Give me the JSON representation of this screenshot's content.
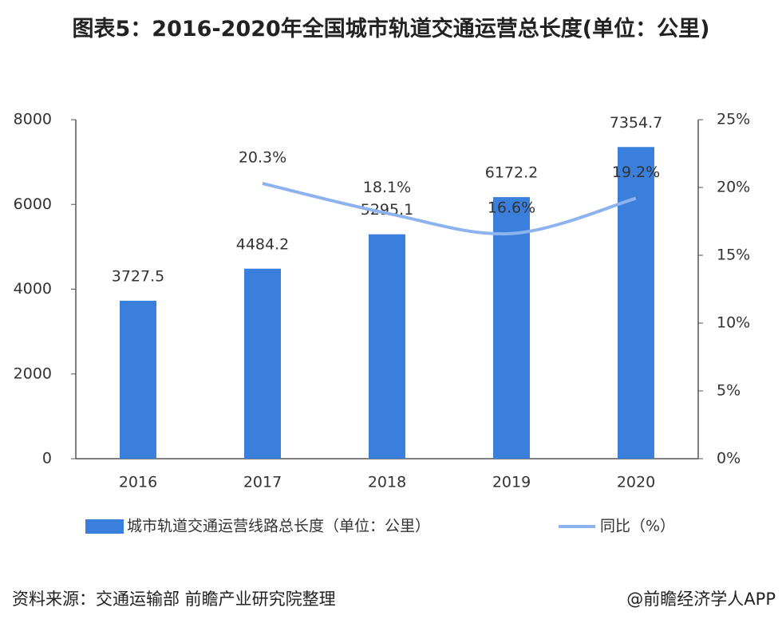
{
  "chart_data": {
    "type": "bar-line",
    "title": "图表5：2016-2020年全国城市轨道交通运营总长度(单位：公里)",
    "categories": [
      "2016",
      "2017",
      "2018",
      "2019",
      "2020"
    ],
    "series": [
      {
        "name": "城市轨道交通运营线路总长度（单位：公里）",
        "type": "bar",
        "color": "#3a7fdb",
        "values": [
          3727.5,
          4484.2,
          5295.1,
          6172.2,
          7354.7
        ]
      },
      {
        "name": "同比（%）",
        "type": "line",
        "axis": "y2",
        "color": "#8db3ee",
        "values": [
          null,
          20.3,
          18.1,
          16.6,
          19.2
        ],
        "value_labels": [
          null,
          "20.3%",
          "18.1%",
          "16.6%",
          "19.2%"
        ]
      }
    ],
    "ylim": [
      0,
      8000
    ],
    "yticks": [
      0,
      2000,
      4000,
      6000,
      8000
    ],
    "y2lim": [
      0,
      25
    ],
    "y2ticks": [
      {
        "value": 0,
        "label": "0%"
      },
      {
        "value": 5,
        "label": "5%"
      },
      {
        "value": 10,
        "label": "10%"
      },
      {
        "value": 15,
        "label": "15%"
      },
      {
        "value": 20,
        "label": "20%"
      },
      {
        "value": 25,
        "label": "25%"
      }
    ],
    "source": "资料来源：交通运输部 前瞻产业研究院整理",
    "credit": "@前瞻经济学人APP"
  }
}
